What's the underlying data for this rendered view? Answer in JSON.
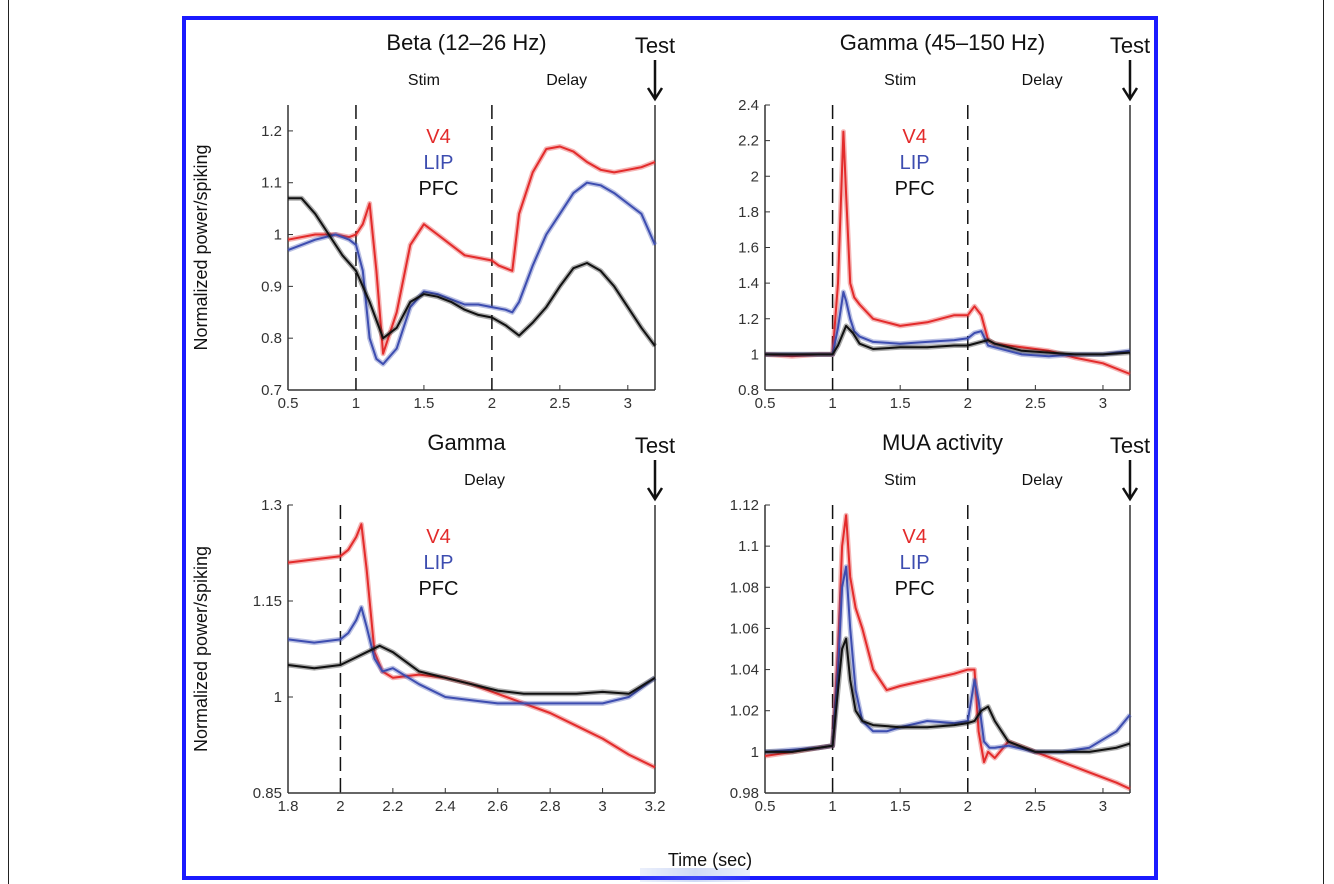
{
  "x_axis_label": "Time (sec)",
  "chart_data": [
    {
      "type": "line",
      "id": "beta",
      "title": "Beta (12–26 Hz)",
      "ylabel": "Normalized power/spiking",
      "xlim": [
        0.5,
        3.2
      ],
      "ylim": [
        0.7,
        1.25
      ],
      "xticks": [
        0.5,
        1,
        1.5,
        2,
        2.5,
        3
      ],
      "xtick_labels": [
        "0.5",
        "1",
        "1.5",
        "2",
        "2.5",
        "3"
      ],
      "yticks": [
        0.7,
        0.8,
        0.9,
        1.0,
        1.1,
        1.2
      ],
      "ytick_labels": [
        "0.7",
        "0.8",
        "0.9",
        "1",
        "1.1",
        "1.2"
      ],
      "phase_lines": [
        1,
        2
      ],
      "phases": [
        {
          "label": "Stim",
          "x": 1.5
        },
        {
          "label": "Delay",
          "x": 2.55
        }
      ],
      "test_marker": {
        "label": "Test",
        "x": 3.2
      },
      "legend": [
        "V4",
        "LIP",
        "PFC"
      ],
      "series": [
        {
          "name": "V4",
          "color": "#e32b2b",
          "x": [
            0.5,
            0.7,
            0.85,
            0.95,
            1.0,
            1.05,
            1.1,
            1.15,
            1.2,
            1.3,
            1.4,
            1.5,
            1.6,
            1.7,
            1.8,
            1.9,
            2.0,
            2.05,
            2.1,
            2.15,
            2.2,
            2.3,
            2.4,
            2.5,
            2.6,
            2.7,
            2.8,
            2.9,
            3.0,
            3.1,
            3.2
          ],
          "y": [
            0.99,
            1.0,
            1.0,
            0.995,
            1.0,
            1.02,
            1.06,
            0.93,
            0.77,
            0.85,
            0.98,
            1.02,
            1.0,
            0.98,
            0.96,
            0.955,
            0.95,
            0.94,
            0.935,
            0.93,
            1.04,
            1.12,
            1.165,
            1.17,
            1.16,
            1.14,
            1.125,
            1.12,
            1.125,
            1.13,
            1.14
          ]
        },
        {
          "name": "LIP",
          "color": "#3d4db0",
          "x": [
            0.5,
            0.7,
            0.85,
            0.95,
            1.0,
            1.05,
            1.1,
            1.15,
            1.2,
            1.3,
            1.4,
            1.5,
            1.6,
            1.7,
            1.8,
            1.9,
            2.0,
            2.1,
            2.15,
            2.2,
            2.3,
            2.4,
            2.5,
            2.6,
            2.7,
            2.8,
            2.9,
            3.0,
            3.1,
            3.2
          ],
          "y": [
            0.97,
            0.99,
            1.0,
            0.99,
            0.98,
            0.93,
            0.8,
            0.76,
            0.75,
            0.78,
            0.86,
            0.89,
            0.885,
            0.875,
            0.865,
            0.865,
            0.86,
            0.855,
            0.85,
            0.87,
            0.94,
            1.0,
            1.04,
            1.08,
            1.1,
            1.095,
            1.08,
            1.06,
            1.04,
            0.98
          ]
        },
        {
          "name": "PFC",
          "color": "#111111",
          "x": [
            0.5,
            0.6,
            0.7,
            0.8,
            0.9,
            1.0,
            1.1,
            1.2,
            1.3,
            1.4,
            1.5,
            1.6,
            1.7,
            1.8,
            1.9,
            2.0,
            2.1,
            2.2,
            2.3,
            2.4,
            2.5,
            2.6,
            2.7,
            2.8,
            2.9,
            3.0,
            3.1,
            3.2
          ],
          "y": [
            1.07,
            1.07,
            1.04,
            1.0,
            0.96,
            0.93,
            0.87,
            0.8,
            0.82,
            0.87,
            0.885,
            0.88,
            0.87,
            0.855,
            0.845,
            0.84,
            0.825,
            0.805,
            0.83,
            0.86,
            0.9,
            0.935,
            0.945,
            0.93,
            0.9,
            0.86,
            0.82,
            0.785
          ]
        }
      ]
    },
    {
      "type": "line",
      "id": "gamma_wide",
      "title": "Gamma (45–150 Hz)",
      "ylabel": "",
      "xlim": [
        0.5,
        3.2
      ],
      "ylim": [
        0.8,
        2.4
      ],
      "xticks": [
        0.5,
        1,
        1.5,
        2,
        2.5,
        3
      ],
      "xtick_labels": [
        "0.5",
        "1",
        "1.5",
        "2",
        "2.5",
        "3"
      ],
      "yticks": [
        0.8,
        1.0,
        1.2,
        1.4,
        1.6,
        1.8,
        2.0,
        2.2,
        2.4
      ],
      "ytick_labels": [
        "0.8",
        "1",
        "1.2",
        "1.4",
        "1.6",
        "1.8",
        "2",
        "2.2",
        "2.4"
      ],
      "phase_lines": [
        1,
        2
      ],
      "phases": [
        {
          "label": "Stim",
          "x": 1.5
        },
        {
          "label": "Delay",
          "x": 2.55
        }
      ],
      "test_marker": {
        "label": "Test",
        "x": 3.2
      },
      "legend": [
        "V4",
        "LIP",
        "PFC"
      ],
      "series": [
        {
          "name": "V4",
          "color": "#e32b2b",
          "x": [
            0.5,
            0.7,
            0.9,
            1.0,
            1.04,
            1.08,
            1.1,
            1.13,
            1.16,
            1.2,
            1.3,
            1.5,
            1.7,
            1.9,
            2.0,
            2.05,
            2.1,
            2.15,
            2.2,
            2.4,
            2.6,
            2.8,
            3.0,
            3.2
          ],
          "y": [
            1.0,
            0.99,
            1.0,
            1.0,
            1.4,
            2.25,
            1.9,
            1.4,
            1.32,
            1.28,
            1.2,
            1.16,
            1.18,
            1.22,
            1.22,
            1.27,
            1.22,
            1.08,
            1.06,
            1.04,
            1.02,
            0.98,
            0.95,
            0.89
          ]
        },
        {
          "name": "LIP",
          "color": "#3d4db0",
          "x": [
            0.5,
            0.7,
            0.9,
            1.0,
            1.04,
            1.08,
            1.1,
            1.13,
            1.16,
            1.2,
            1.3,
            1.5,
            1.7,
            1.9,
            2.0,
            2.05,
            2.1,
            2.15,
            2.2,
            2.4,
            2.6,
            2.8,
            3.0,
            3.2
          ],
          "y": [
            1.0,
            1.0,
            1.0,
            1.0,
            1.15,
            1.35,
            1.3,
            1.2,
            1.13,
            1.1,
            1.07,
            1.06,
            1.07,
            1.08,
            1.09,
            1.12,
            1.13,
            1.05,
            1.04,
            1.0,
            0.99,
            1.0,
            1.0,
            1.02
          ]
        },
        {
          "name": "PFC",
          "color": "#111111",
          "x": [
            0.5,
            0.7,
            0.9,
            1.0,
            1.04,
            1.1,
            1.15,
            1.2,
            1.3,
            1.5,
            1.7,
            1.9,
            2.0,
            2.1,
            2.15,
            2.2,
            2.4,
            2.6,
            2.8,
            3.0,
            3.2
          ],
          "y": [
            1.0,
            1.0,
            1.0,
            1.0,
            1.05,
            1.16,
            1.12,
            1.06,
            1.03,
            1.04,
            1.04,
            1.05,
            1.05,
            1.07,
            1.08,
            1.06,
            1.02,
            1.01,
            1.0,
            1.0,
            1.01
          ]
        }
      ]
    },
    {
      "type": "line",
      "id": "gamma_delay",
      "title": "Gamma",
      "ylabel": "Normalized power/spiking",
      "xlim": [
        1.8,
        3.2
      ],
      "ylim": [
        0.85,
        1.3
      ],
      "xticks": [
        1.8,
        2.0,
        2.2,
        2.4,
        2.6,
        2.8,
        3.0,
        3.2
      ],
      "xtick_labels": [
        "1.8",
        "2",
        "2.2",
        "2.4",
        "2.6",
        "2.8",
        "3",
        "3.2"
      ],
      "yticks": [
        0.85,
        1.0,
        1.15,
        1.3
      ],
      "ytick_labels": [
        "0.85",
        "1",
        "1.15",
        "1.3"
      ],
      "phase_lines": [
        2
      ],
      "phases": [
        {
          "label": "Delay",
          "x": 2.55
        }
      ],
      "test_marker": {
        "label": "Test",
        "x": 3.2
      },
      "legend": [
        "V4",
        "LIP",
        "PFC"
      ],
      "series": [
        {
          "name": "V4",
          "color": "#e32b2b",
          "x": [
            1.8,
            1.9,
            2.0,
            2.03,
            2.06,
            2.08,
            2.1,
            2.13,
            2.16,
            2.2,
            2.3,
            2.4,
            2.5,
            2.6,
            2.7,
            2.8,
            2.9,
            3.0,
            3.1,
            3.2
          ],
          "y": [
            1.21,
            1.215,
            1.22,
            1.23,
            1.25,
            1.27,
            1.2,
            1.07,
            1.04,
            1.03,
            1.035,
            1.03,
            1.02,
            1.005,
            0.99,
            0.975,
            0.955,
            0.935,
            0.91,
            0.89
          ]
        },
        {
          "name": "LIP",
          "color": "#3d4db0",
          "x": [
            1.8,
            1.9,
            2.0,
            2.03,
            2.06,
            2.08,
            2.1,
            2.13,
            2.16,
            2.2,
            2.3,
            2.4,
            2.5,
            2.6,
            2.7,
            2.8,
            2.9,
            3.0,
            3.1,
            3.2
          ],
          "y": [
            1.09,
            1.085,
            1.09,
            1.1,
            1.12,
            1.14,
            1.11,
            1.06,
            1.04,
            1.045,
            1.02,
            1.0,
            0.995,
            0.99,
            0.99,
            0.99,
            0.99,
            0.99,
            1.0,
            1.03
          ]
        },
        {
          "name": "PFC",
          "color": "#111111",
          "x": [
            1.8,
            1.9,
            2.0,
            2.05,
            2.1,
            2.15,
            2.2,
            2.3,
            2.4,
            2.5,
            2.6,
            2.7,
            2.8,
            2.9,
            3.0,
            3.1,
            3.2
          ],
          "y": [
            1.05,
            1.045,
            1.05,
            1.06,
            1.07,
            1.08,
            1.07,
            1.04,
            1.03,
            1.02,
            1.01,
            1.005,
            1.005,
            1.005,
            1.008,
            1.005,
            1.03
          ]
        }
      ]
    },
    {
      "type": "line",
      "id": "mua",
      "title": "MUA activity",
      "ylabel": "",
      "xlim": [
        0.5,
        3.2
      ],
      "ylim": [
        0.98,
        1.12
      ],
      "xticks": [
        0.5,
        1,
        1.5,
        2,
        2.5,
        3
      ],
      "xtick_labels": [
        "0.5",
        "1",
        "1.5",
        "2",
        "2.5",
        "3"
      ],
      "yticks": [
        0.98,
        1.0,
        1.02,
        1.04,
        1.06,
        1.08,
        1.1,
        1.12
      ],
      "ytick_labels": [
        "0.98",
        "1",
        "1.02",
        "1.04",
        "1.06",
        "1.08",
        "1.1",
        "1.12"
      ],
      "phase_lines": [
        1,
        2
      ],
      "phases": [
        {
          "label": "Stim",
          "x": 1.5
        },
        {
          "label": "Delay",
          "x": 2.55
        }
      ],
      "test_marker": {
        "label": "Test",
        "x": 3.2
      },
      "legend": [
        "V4",
        "LIP",
        "PFC"
      ],
      "series": [
        {
          "name": "V4",
          "color": "#e32b2b",
          "x": [
            0.5,
            0.7,
            0.9,
            1.0,
            1.04,
            1.07,
            1.1,
            1.13,
            1.17,
            1.22,
            1.3,
            1.4,
            1.5,
            1.7,
            1.9,
            2.0,
            2.05,
            2.08,
            2.12,
            2.15,
            2.2,
            2.3,
            2.5,
            2.7,
            2.9,
            3.1,
            3.2
          ],
          "y": [
            0.998,
            1.0,
            1.002,
            1.003,
            1.05,
            1.1,
            1.115,
            1.085,
            1.07,
            1.06,
            1.04,
            1.03,
            1.032,
            1.035,
            1.038,
            1.04,
            1.04,
            1.01,
            0.995,
            1.0,
            0.997,
            1.005,
            1.0,
            0.995,
            0.99,
            0.985,
            0.982
          ]
        },
        {
          "name": "LIP",
          "color": "#3d4db0",
          "x": [
            0.5,
            0.7,
            0.9,
            1.0,
            1.04,
            1.07,
            1.1,
            1.13,
            1.17,
            1.22,
            1.3,
            1.4,
            1.5,
            1.7,
            1.9,
            2.0,
            2.05,
            2.08,
            2.12,
            2.16,
            2.2,
            2.3,
            2.5,
            2.7,
            2.9,
            3.1,
            3.2
          ],
          "y": [
            1.0,
            1.001,
            1.002,
            1.003,
            1.04,
            1.08,
            1.09,
            1.06,
            1.03,
            1.015,
            1.01,
            1.01,
            1.012,
            1.015,
            1.014,
            1.015,
            1.035,
            1.025,
            1.005,
            1.002,
            1.002,
            1.003,
            1.0,
            1.0,
            1.002,
            1.01,
            1.018
          ]
        },
        {
          "name": "PFC",
          "color": "#111111",
          "x": [
            0.5,
            0.7,
            0.9,
            1.0,
            1.04,
            1.07,
            1.1,
            1.13,
            1.17,
            1.22,
            1.3,
            1.5,
            1.7,
            1.9,
            2.0,
            2.05,
            2.1,
            2.15,
            2.2,
            2.3,
            2.5,
            2.7,
            2.9,
            3.1,
            3.2
          ],
          "y": [
            1.0,
            1.0,
            1.002,
            1.003,
            1.03,
            1.05,
            1.055,
            1.035,
            1.02,
            1.015,
            1.013,
            1.012,
            1.012,
            1.013,
            1.014,
            1.015,
            1.02,
            1.022,
            1.015,
            1.005,
            1.0,
            1.0,
            1.0,
            1.002,
            1.004
          ]
        }
      ]
    }
  ]
}
